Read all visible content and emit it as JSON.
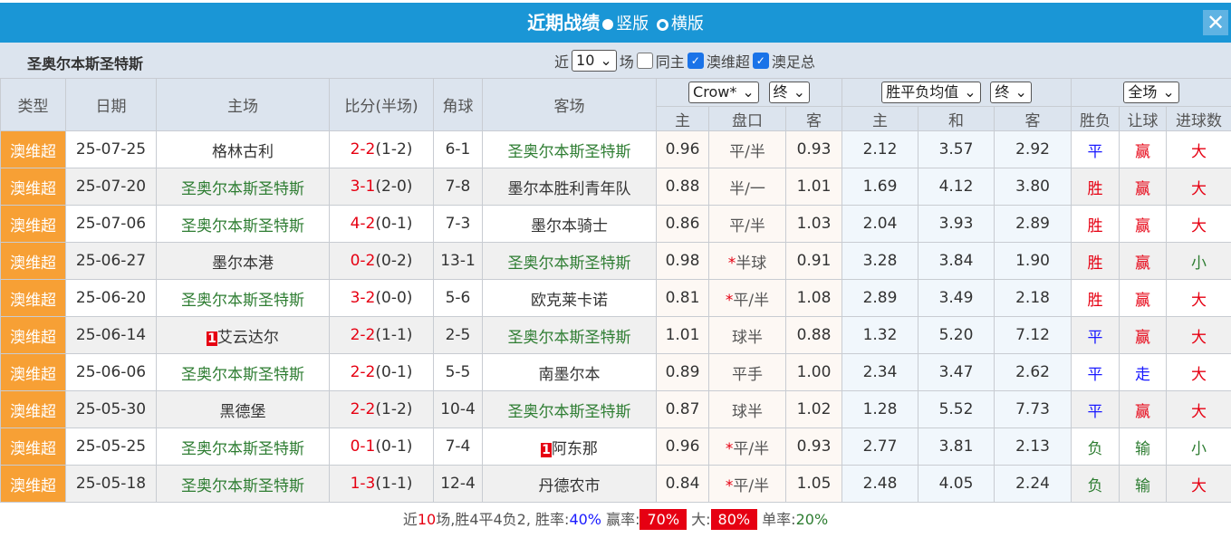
{
  "title": "近期战绩",
  "layout_options": [
    "竖版",
    "横版"
  ],
  "layout_selected": "竖版",
  "team": "圣奥尔本斯圣特斯",
  "filter": {
    "prefix": "近",
    "count": "10",
    "suffix": "场",
    "same_home": "同主",
    "same_home_checked": false,
    "league1": "澳维超",
    "league1_checked": true,
    "league2": "澳足总",
    "league2_checked": true
  },
  "headers": {
    "type": "类型",
    "date": "日期",
    "home": "主场",
    "score": "比分(半场)",
    "corner": "角球",
    "away": "客场",
    "company": "Crow*",
    "ah_stage": "终",
    "eu_type": "胜平负均值",
    "eu_stage": "终",
    "period": "全场",
    "ah_home": "主",
    "ah_line": "盘口",
    "ah_away": "客",
    "eu_home": "主",
    "eu_draw": "和",
    "eu_away": "客",
    "result": "胜负",
    "handicap": "让球",
    "goals": "进球数"
  },
  "colors": {
    "title_bar": "#1a96d6",
    "type_badge": "#f7a035",
    "win": "#e60012",
    "draw": "#1a1aff",
    "loss": "#2e7d32"
  },
  "rows": [
    {
      "type": "澳维超",
      "date": "25-07-25",
      "home": "格林古利",
      "home_rc": "",
      "score": "2-2",
      "half": "(1-2)",
      "corner": "6-1",
      "away": "圣奥尔本斯圣特斯",
      "away_rc": "",
      "hl": "away",
      "ah": [
        "0.96",
        "平/半",
        "0.93"
      ],
      "star": false,
      "eu": [
        "2.12",
        "3.57",
        "2.92"
      ],
      "res": "平",
      "hc": "赢",
      "goals": "大"
    },
    {
      "type": "澳维超",
      "date": "25-07-20",
      "home": "圣奥尔本斯圣特斯",
      "home_rc": "",
      "score": "3-1",
      "half": "(2-0)",
      "corner": "7-8",
      "away": "墨尔本胜利青年队",
      "away_rc": "",
      "hl": "home",
      "ah": [
        "0.88",
        "半/一",
        "1.01"
      ],
      "star": false,
      "eu": [
        "1.69",
        "4.12",
        "3.80"
      ],
      "res": "胜",
      "hc": "赢",
      "goals": "大"
    },
    {
      "type": "澳维超",
      "date": "25-07-06",
      "home": "圣奥尔本斯圣特斯",
      "home_rc": "",
      "score": "4-2",
      "half": "(0-1)",
      "corner": "7-3",
      "away": "墨尔本骑士",
      "away_rc": "",
      "hl": "home",
      "ah": [
        "0.86",
        "平/半",
        "1.03"
      ],
      "star": false,
      "eu": [
        "2.04",
        "3.93",
        "2.89"
      ],
      "res": "胜",
      "hc": "赢",
      "goals": "大"
    },
    {
      "type": "澳维超",
      "date": "25-06-27",
      "home": "墨尔本港",
      "home_rc": "",
      "score": "0-2",
      "half": "(0-2)",
      "corner": "13-1",
      "away": "圣奥尔本斯圣特斯",
      "away_rc": "",
      "hl": "away",
      "ah": [
        "0.98",
        "半球",
        "0.91"
      ],
      "star": true,
      "eu": [
        "3.28",
        "3.84",
        "1.90"
      ],
      "res": "胜",
      "hc": "赢",
      "goals": "小"
    },
    {
      "type": "澳维超",
      "date": "25-06-20",
      "home": "圣奥尔本斯圣特斯",
      "home_rc": "",
      "score": "3-2",
      "half": "(0-0)",
      "corner": "5-6",
      "away": "欧克莱卡诺",
      "away_rc": "",
      "hl": "home",
      "ah": [
        "0.81",
        "平/半",
        "1.08"
      ],
      "star": true,
      "eu": [
        "2.89",
        "3.49",
        "2.18"
      ],
      "res": "胜",
      "hc": "赢",
      "goals": "大"
    },
    {
      "type": "澳维超",
      "date": "25-06-14",
      "home": "艾云达尔",
      "home_rc": "1",
      "score": "2-2",
      "half": "(1-1)",
      "corner": "2-5",
      "away": "圣奥尔本斯圣特斯",
      "away_rc": "",
      "hl": "away",
      "ah": [
        "1.01",
        "球半",
        "0.88"
      ],
      "star": false,
      "eu": [
        "1.32",
        "5.20",
        "7.12"
      ],
      "res": "平",
      "hc": "赢",
      "goals": "大"
    },
    {
      "type": "澳维超",
      "date": "25-06-06",
      "home": "圣奥尔本斯圣特斯",
      "home_rc": "",
      "score": "2-2",
      "half": "(0-1)",
      "corner": "5-5",
      "away": "南墨尔本",
      "away_rc": "",
      "hl": "home",
      "ah": [
        "0.89",
        "平手",
        "1.00"
      ],
      "star": false,
      "eu": [
        "2.34",
        "3.47",
        "2.62"
      ],
      "res": "平",
      "hc": "走",
      "goals": "大"
    },
    {
      "type": "澳维超",
      "date": "25-05-30",
      "home": "黑德堡",
      "home_rc": "",
      "score": "2-2",
      "half": "(1-2)",
      "corner": "10-4",
      "away": "圣奥尔本斯圣特斯",
      "away_rc": "",
      "hl": "away",
      "ah": [
        "0.87",
        "球半",
        "1.02"
      ],
      "star": false,
      "eu": [
        "1.28",
        "5.52",
        "7.73"
      ],
      "res": "平",
      "hc": "赢",
      "goals": "大"
    },
    {
      "type": "澳维超",
      "date": "25-05-25",
      "home": "圣奥尔本斯圣特斯",
      "home_rc": "",
      "score": "0-1",
      "half": "(0-1)",
      "corner": "7-4",
      "away": "阿东那",
      "away_rc": "1",
      "hl": "home",
      "ah": [
        "0.96",
        "平/半",
        "0.93"
      ],
      "star": true,
      "eu": [
        "2.77",
        "3.81",
        "2.13"
      ],
      "res": "负",
      "hc": "输",
      "goals": "小"
    },
    {
      "type": "澳维超",
      "date": "25-05-18",
      "home": "圣奥尔本斯圣特斯",
      "home_rc": "",
      "score": "1-3",
      "half": "(1-1)",
      "corner": "12-4",
      "away": "丹德农市",
      "away_rc": "",
      "hl": "home",
      "ah": [
        "0.84",
        "平/半",
        "1.05"
      ],
      "star": true,
      "eu": [
        "2.48",
        "4.05",
        "2.24"
      ],
      "res": "负",
      "hc": "输",
      "goals": "大"
    }
  ],
  "footer": {
    "p1": "近",
    "n": "10",
    "p2": "场,胜4平4负2, 胜率:",
    "win_rate": "40%",
    "p3": " 赢率:",
    "cover_rate": "70%",
    "p4": " 大:",
    "over_rate": "80%",
    "p5": " 单率:",
    "odd_rate": "20%"
  }
}
